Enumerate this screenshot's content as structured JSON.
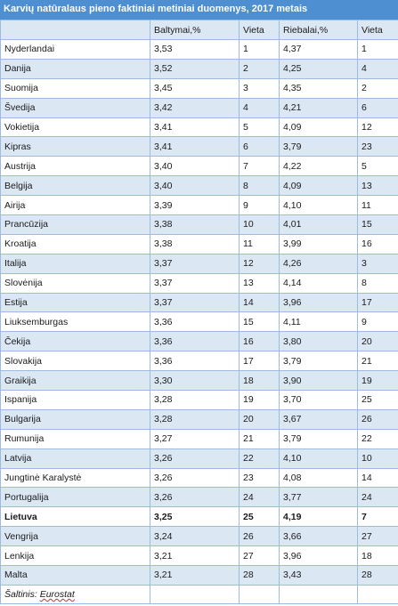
{
  "title": "Karvių natūralaus pieno faktiniai metiniai duomenys, 2017 metais",
  "columns": [
    "",
    "Baltymai,%",
    "Vieta",
    "Riebalai,%",
    "Vieta"
  ],
  "rows": [
    {
      "country": "Nyderlandai",
      "protein": "3,53",
      "protein_rank": "1",
      "fat": "4,37",
      "fat_rank": "1"
    },
    {
      "country": "Danija",
      "protein": "3,52",
      "protein_rank": "2",
      "fat": "4,25",
      "fat_rank": "4"
    },
    {
      "country": "Suomija",
      "protein": "3,45",
      "protein_rank": "3",
      "fat": "4,35",
      "fat_rank": "2"
    },
    {
      "country": "Švedija",
      "protein": "3,42",
      "protein_rank": "4",
      "fat": "4,21",
      "fat_rank": "6"
    },
    {
      "country": "Vokietija",
      "protein": "3,41",
      "protein_rank": "5",
      "fat": "4,09",
      "fat_rank": "12"
    },
    {
      "country": "Kipras",
      "protein": "3,41",
      "protein_rank": "6",
      "fat": "3,79",
      "fat_rank": "23"
    },
    {
      "country": "Austrija",
      "protein": "3,40",
      "protein_rank": "7",
      "fat": "4,22",
      "fat_rank": "5"
    },
    {
      "country": "Belgija",
      "protein": "3,40",
      "protein_rank": "8",
      "fat": "4,09",
      "fat_rank": "13"
    },
    {
      "country": "Airija",
      "protein": "3,39",
      "protein_rank": "9",
      "fat": "4,10",
      "fat_rank": "11"
    },
    {
      "country": "Prancūzija",
      "protein": "3,38",
      "protein_rank": "10",
      "fat": "4,01",
      "fat_rank": "15"
    },
    {
      "country": "Kroatija",
      "protein": "3,38",
      "protein_rank": "11",
      "fat": "3,99",
      "fat_rank": "16"
    },
    {
      "country": "Italija",
      "protein": "3,37",
      "protein_rank": "12",
      "fat": "4,26",
      "fat_rank": "3"
    },
    {
      "country": "Slovėnija",
      "protein": "3,37",
      "protein_rank": "13",
      "fat": "4,14",
      "fat_rank": "8"
    },
    {
      "country": "Estija",
      "protein": "3,37",
      "protein_rank": "14",
      "fat": "3,96",
      "fat_rank": "17"
    },
    {
      "country": "Liuksemburgas",
      "protein": "3,36",
      "protein_rank": "15",
      "fat": "4,11",
      "fat_rank": "9"
    },
    {
      "country": "Čekija",
      "protein": "3,36",
      "protein_rank": "16",
      "fat": "3,80",
      "fat_rank": "20"
    },
    {
      "country": "Slovakija",
      "protein": "3,36",
      "protein_rank": "17",
      "fat": "3,79",
      "fat_rank": "21"
    },
    {
      "country": "Graikija",
      "protein": "3,30",
      "protein_rank": "18",
      "fat": "3,90",
      "fat_rank": "19"
    },
    {
      "country": "Ispanija",
      "protein": "3,28",
      "protein_rank": "19",
      "fat": "3,70",
      "fat_rank": "25"
    },
    {
      "country": "Bulgarija",
      "protein": "3,28",
      "protein_rank": "20",
      "fat": "3,67",
      "fat_rank": "26"
    },
    {
      "country": "Rumunija",
      "protein": "3,27",
      "protein_rank": "21",
      "fat": "3,79",
      "fat_rank": "22"
    },
    {
      "country": "Latvija",
      "protein": "3,26",
      "protein_rank": "22",
      "fat": "4,10",
      "fat_rank": "10"
    },
    {
      "country": "Jungtinė Karalystė",
      "protein": "3,26",
      "protein_rank": "23",
      "fat": "4,08",
      "fat_rank": "14"
    },
    {
      "country": "Portugalija",
      "protein": "3,26",
      "protein_rank": "24",
      "fat": "3,77",
      "fat_rank": "24"
    },
    {
      "country": "Lietuva",
      "protein": "3,25",
      "protein_rank": "25",
      "fat": "4,19",
      "fat_rank": "7",
      "highlight": true
    },
    {
      "country": "Vengrija",
      "protein": "3,24",
      "protein_rank": "26",
      "fat": "3,66",
      "fat_rank": "27"
    },
    {
      "country": "Lenkija",
      "protein": "3,21",
      "protein_rank": "27",
      "fat": "3,96",
      "fat_rank": "18"
    },
    {
      "country": "Malta",
      "protein": "3,21",
      "protein_rank": "28",
      "fat": "3,43",
      "fat_rank": "28"
    }
  ],
  "source": {
    "label": "Šaltinis:",
    "value": "Eurostat"
  },
  "colors": {
    "title_bg": "#4e8fd1",
    "band": "#dce7f4",
    "border": "#9dbbe0"
  }
}
